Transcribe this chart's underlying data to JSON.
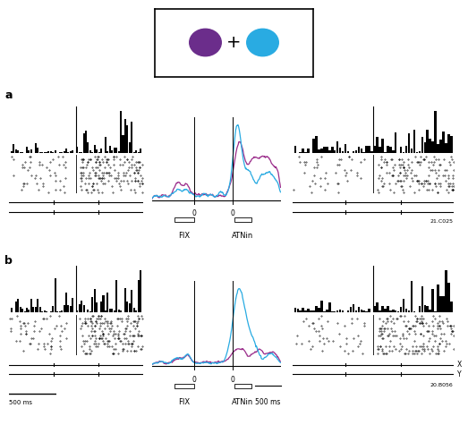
{
  "purple_circle_color": "#6B2D8B",
  "cyan_circle_color": "#29ABE2",
  "panel_a_label": "a",
  "panel_b_label": "b",
  "cell_id_a": "21.C025",
  "cell_id_b": "20.B056",
  "fix_label": "FIX",
  "atnin_label": "ATNin",
  "scale_500ms": "500 ms",
  "x_label": "X",
  "y_label": "Y",
  "bg_color": "#ffffff",
  "line_color_purple": "#9B2D8B",
  "line_color_cyan": "#29ABE2"
}
